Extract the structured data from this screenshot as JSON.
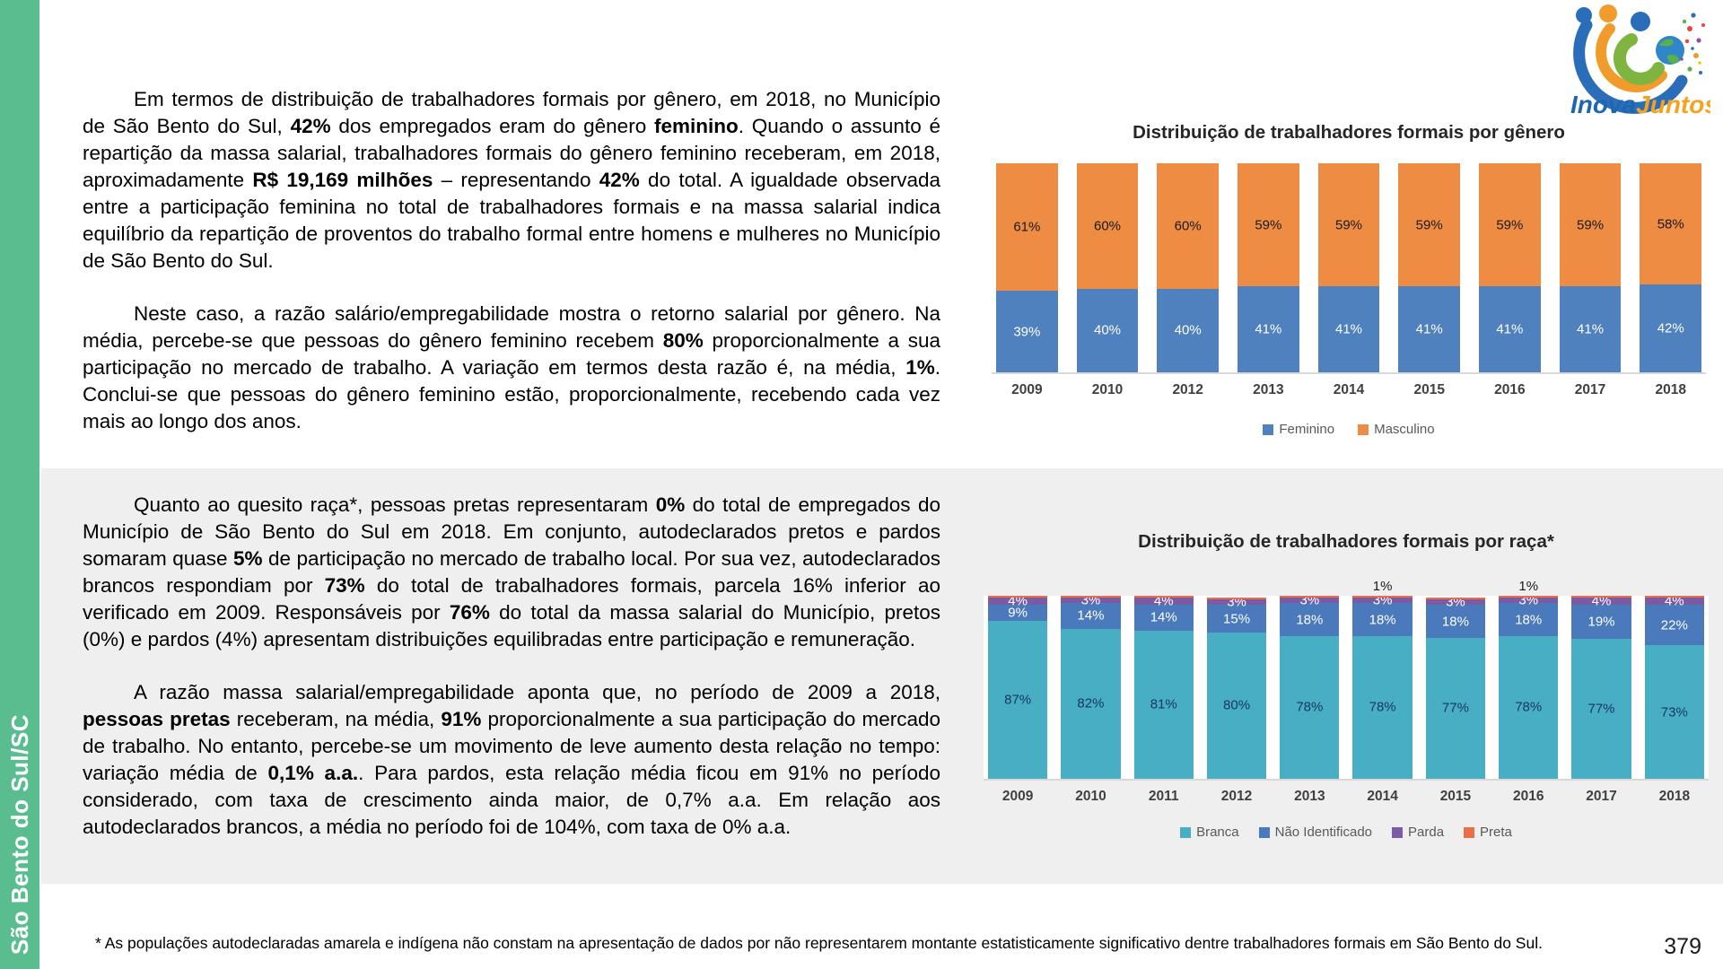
{
  "page": {
    "number": "379",
    "background": "#FFFFFF",
    "section2_background": "#EFEFEF"
  },
  "sidebar": {
    "label": "São Bento do Sul/SC",
    "color": "#59BD90"
  },
  "logo": {
    "inova": "Inova",
    "juntos": "Juntos",
    "inova_color": "#1F66B0",
    "juntos_color": "#F6A21D"
  },
  "paragraphs_gender": [
    [
      {
        "t": "Em termos de distribuição de trabalhadores formais por gênero, em 2018, no Município de São Bento do Sul, ",
        "b": false
      },
      {
        "t": "42%",
        "b": true
      },
      {
        "t": " dos empregados eram do gênero ",
        "b": false
      },
      {
        "t": "feminino",
        "b": true
      },
      {
        "t": ". Quando o assunto é repartição da massa salarial, trabalhadores formais do gênero feminino receberam, em 2018, aproximadamente ",
        "b": false
      },
      {
        "t": "R$ 19,169 milhões",
        "b": true
      },
      {
        "t": " – representando ",
        "b": false
      },
      {
        "t": "42%",
        "b": true
      },
      {
        "t": " do total. A igualdade observada entre a participação feminina no total de trabalhadores formais e na massa salarial indica equilíbrio da repartição de proventos do trabalho formal entre homens e mulheres no Município de São Bento do Sul.",
        "b": false
      }
    ],
    [
      {
        "t": "Neste caso, a razão salário/empregabilidade mostra o retorno salarial por gênero. Na média, percebe-se que pessoas do gênero feminino recebem ",
        "b": false
      },
      {
        "t": "80%",
        "b": true
      },
      {
        "t": " proporcionalmente a sua participação no mercado de trabalho. A variação em termos desta razão é, na média, ",
        "b": false
      },
      {
        "t": "1%",
        "b": true
      },
      {
        "t": ". Conclui-se que pessoas do gênero feminino estão, proporcionalmente, recebendo cada vez mais ao longo dos anos.",
        "b": false
      }
    ]
  ],
  "paragraphs_race": [
    [
      {
        "t": "Quanto ao quesito raça*, pessoas pretas representaram ",
        "b": false
      },
      {
        "t": "0%",
        "b": true
      },
      {
        "t": " do total de empregados do Município de São Bento do Sul em 2018. Em conjunto, autodeclarados pretos e pardos somaram quase ",
        "b": false
      },
      {
        "t": "5%",
        "b": true
      },
      {
        "t": " de participação no mercado de trabalho local. Por sua vez, autodeclarados brancos respondiam por ",
        "b": false
      },
      {
        "t": "73%",
        "b": true
      },
      {
        "t": " do total de trabalhadores formais, parcela 16% inferior ao verificado em 2009. Responsáveis por ",
        "b": false
      },
      {
        "t": "76%",
        "b": true
      },
      {
        "t": " do total da massa salarial do Município, pretos (0%) e pardos (4%) apresentam distribuições equilibradas entre participação e remuneração.",
        "b": false
      }
    ],
    [
      {
        "t": "A razão massa salarial/empregabilidade aponta que, no período de 2009 a 2018, ",
        "b": false
      },
      {
        "t": "pessoas pretas",
        "b": true
      },
      {
        "t": " receberam, na média, ",
        "b": false
      },
      {
        "t": "91%",
        "b": true
      },
      {
        "t": " proporcionalmente a sua participação do mercado de trabalho. No entanto, percebe-se um movimento de leve aumento desta relação no tempo: variação média de ",
        "b": false
      },
      {
        "t": "0,1% a.a.",
        "b": true
      },
      {
        "t": ". Para pardos, esta relação média ficou em 91% no período considerado, com taxa de crescimento ainda maior, de 0,7% a.a. Em relação aos autodeclarados brancos, a média no período foi de 104%, com taxa de 0% a.a.",
        "b": false
      }
    ]
  ],
  "footnote": "* As populações autodeclaradas amarela e indígena não constam na apresentação de dados por não representarem montante estatisticamente significativo dentre trabalhadores formais em São Bento do Sul.",
  "chart_data": [
    {
      "type": "bar",
      "stacked": true,
      "title": "Distribuição de trabalhadores formais por gênero",
      "categories": [
        "2009",
        "2010",
        "2012",
        "2013",
        "2014",
        "2015",
        "2016",
        "2017",
        "2018"
      ],
      "series": [
        {
          "name": "Feminino",
          "color": "#4E81BD",
          "label_color": "#FFFFFF",
          "values": [
            39,
            40,
            40,
            41,
            41,
            41,
            41,
            41,
            42
          ]
        },
        {
          "name": "Masculino",
          "color": "#EE8C44",
          "label_color": "#1A1A1A",
          "values": [
            61,
            60,
            60,
            59,
            59,
            59,
            59,
            59,
            58
          ]
        }
      ],
      "ylim": [
        0,
        100
      ],
      "grid": false,
      "legend_position": "bottom"
    },
    {
      "type": "bar",
      "stacked": true,
      "title": "Distribuição de trabalhadores formais por raça*",
      "categories": [
        "2009",
        "2010",
        "2011",
        "2012",
        "2013",
        "2014",
        "2015",
        "2016",
        "2017",
        "2018"
      ],
      "series": [
        {
          "name": "Branca",
          "color": "#47AEC3",
          "label_color": "#17375E",
          "values": [
            87,
            82,
            81,
            80,
            78,
            78,
            77,
            78,
            77,
            73
          ]
        },
        {
          "name": "Não Identificado",
          "color": "#4A79BC",
          "label_color": "#FFFFFF",
          "values": [
            9,
            14,
            14,
            15,
            18,
            18,
            18,
            18,
            19,
            22
          ]
        },
        {
          "name": "Parda",
          "color": "#7B5BA3",
          "label_color": "#FFFFFF",
          "values": [
            4,
            3,
            4,
            3,
            3,
            3,
            3,
            3,
            4,
            4
          ]
        },
        {
          "name": "Preta",
          "color": "#E96F4C",
          "label_color": "#1A1A1A",
          "values": [
            0,
            0,
            0,
            0,
            0,
            1,
            0,
            1,
            0,
            0
          ],
          "label_outside": true,
          "min_render_pct": 0.8
        }
      ],
      "ylim": [
        0,
        100
      ],
      "grid": false,
      "legend_position": "bottom"
    }
  ]
}
